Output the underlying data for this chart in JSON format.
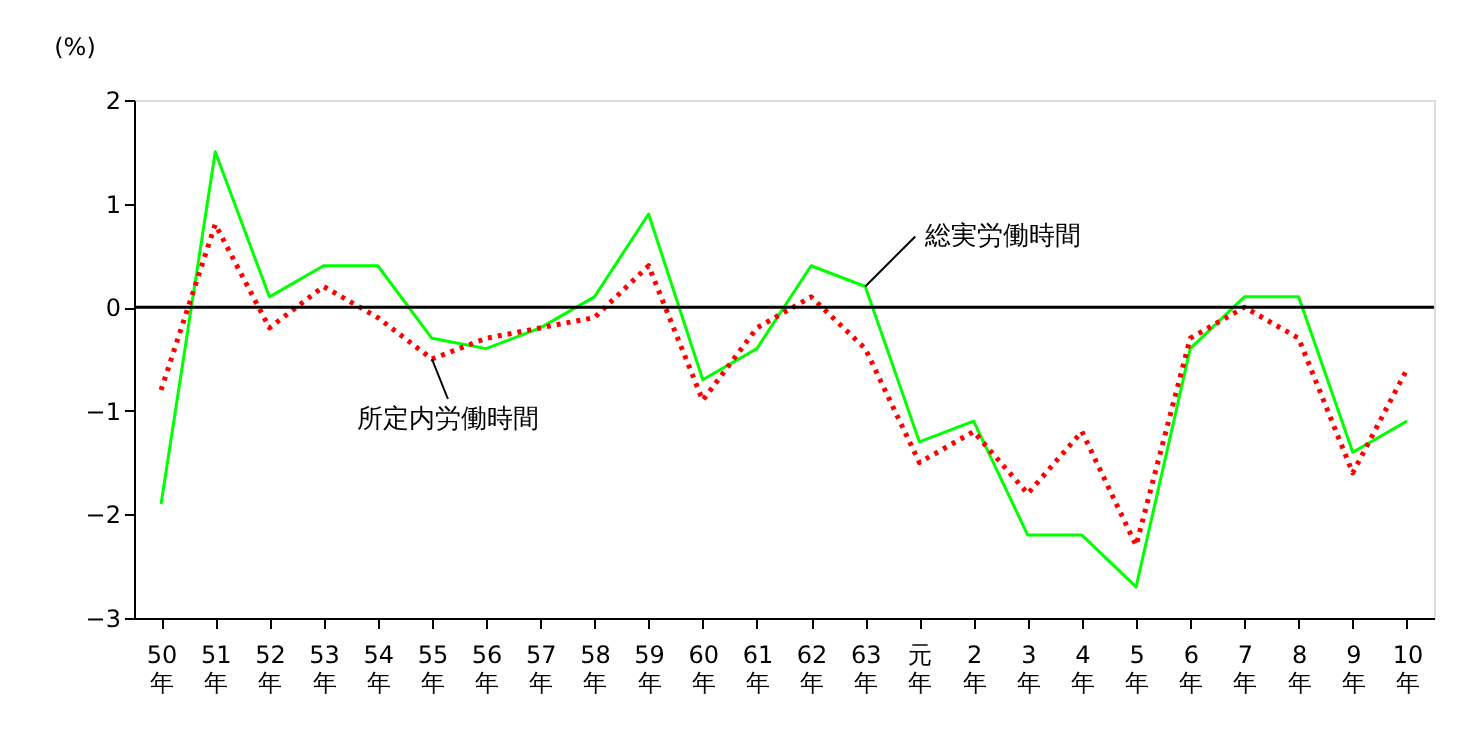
{
  "chart_data": {
    "type": "line",
    "ylabel": "(%)",
    "categories": [
      "50年",
      "51年",
      "52年",
      "53年",
      "54年",
      "55年",
      "56年",
      "57年",
      "58年",
      "59年",
      "60年",
      "61年",
      "62年",
      "63年",
      "元年",
      "2年",
      "3年",
      "4年",
      "5年",
      "6年",
      "7年",
      "8年",
      "9年",
      "10年"
    ],
    "series": [
      {
        "name": "総実労働時間",
        "color": "#00ff00",
        "line_style": "solid",
        "values": [
          -1.9,
          1.5,
          0.1,
          0.4,
          0.4,
          -0.3,
          -0.4,
          -0.2,
          0.1,
          0.9,
          -0.7,
          -0.4,
          0.4,
          0.2,
          -1.3,
          -1.1,
          -2.2,
          -2.2,
          -2.7,
          -0.4,
          0.1,
          0.1,
          -1.4,
          -1.1
        ]
      },
      {
        "name": "所定内労働時間",
        "color": "#ff0000",
        "line_style": "dotted",
        "values": [
          -0.8,
          0.8,
          -0.2,
          0.2,
          -0.1,
          -0.5,
          -0.3,
          -0.2,
          -0.1,
          0.4,
          -0.9,
          -0.2,
          0.1,
          -0.4,
          -1.5,
          -1.2,
          -1.8,
          -1.2,
          -2.3,
          -0.3,
          0.0,
          -0.3,
          -1.6,
          -0.6
        ]
      }
    ],
    "ylim": [
      -3,
      2
    ],
    "yticks": [
      -3,
      -2,
      -1,
      0,
      1,
      2
    ],
    "ref_lines": [
      {
        "axis": "y",
        "value": 0,
        "color": "#000000"
      }
    ],
    "grid": false,
    "legend": false,
    "marker": "none"
  }
}
